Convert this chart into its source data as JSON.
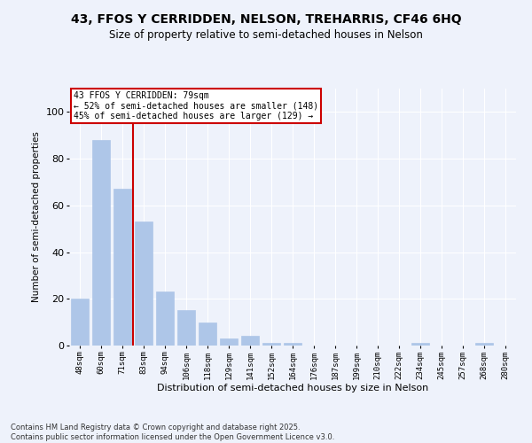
{
  "title1": "43, FFOS Y CERRIDDEN, NELSON, TREHARRIS, CF46 6HQ",
  "title2": "Size of property relative to semi-detached houses in Nelson",
  "xlabel": "Distribution of semi-detached houses by size in Nelson",
  "ylabel": "Number of semi-detached properties",
  "categories": [
    "48sqm",
    "60sqm",
    "71sqm",
    "83sqm",
    "94sqm",
    "106sqm",
    "118sqm",
    "129sqm",
    "141sqm",
    "152sqm",
    "164sqm",
    "176sqm",
    "187sqm",
    "199sqm",
    "210sqm",
    "222sqm",
    "234sqm",
    "245sqm",
    "257sqm",
    "268sqm",
    "280sqm"
  ],
  "values": [
    20,
    88,
    67,
    53,
    23,
    15,
    10,
    3,
    4,
    1,
    1,
    0,
    0,
    0,
    0,
    0,
    1,
    0,
    0,
    1,
    0
  ],
  "bar_color": "#aec6e8",
  "bar_edge_color": "#aec6e8",
  "annotation_title": "43 FFOS Y CERRIDDEN: 79sqm",
  "annotation_line1": "← 52% of semi-detached houses are smaller (148)",
  "annotation_line2": "45% of semi-detached houses are larger (129) →",
  "vline_x": 2.5,
  "annotation_box_color": "#ffffff",
  "annotation_box_edge_color": "#cc0000",
  "vline_color": "#cc0000",
  "background_color": "#eef2fb",
  "footer": "Contains HM Land Registry data © Crown copyright and database right 2025.\nContains public sector information licensed under the Open Government Licence v3.0.",
  "ylim": [
    0,
    110
  ],
  "yticks": [
    0,
    20,
    40,
    60,
    80,
    100
  ]
}
